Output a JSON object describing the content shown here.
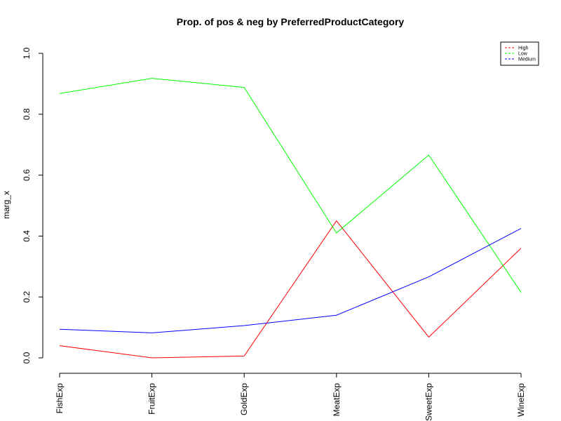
{
  "chart_data": {
    "type": "line",
    "title": "Prop. of pos & neg by PreferredProductCategory",
    "xlabel": "",
    "ylabel": "marg_x",
    "categories": [
      "FishExp",
      "FruitExp",
      "GoldExp",
      "MeatExp",
      "SweetExp",
      "WineExp"
    ],
    "ylim": [
      0,
      1
    ],
    "yticks": [
      "0.0",
      "0.2",
      "0.4",
      "0.6",
      "0.8",
      "1.0"
    ],
    "grid": false,
    "legend_position": "top-right",
    "series": [
      {
        "name": "High",
        "color": "#ff0000",
        "values": [
          0.04,
          0.0,
          0.006,
          0.45,
          0.068,
          0.36
        ]
      },
      {
        "name": "Low",
        "color": "#00ff00",
        "values": [
          0.868,
          0.918,
          0.888,
          0.41,
          0.666,
          0.215
        ]
      },
      {
        "name": "Medium",
        "color": "#0000ff",
        "values": [
          0.094,
          0.082,
          0.106,
          0.14,
          0.266,
          0.425
        ]
      }
    ]
  }
}
